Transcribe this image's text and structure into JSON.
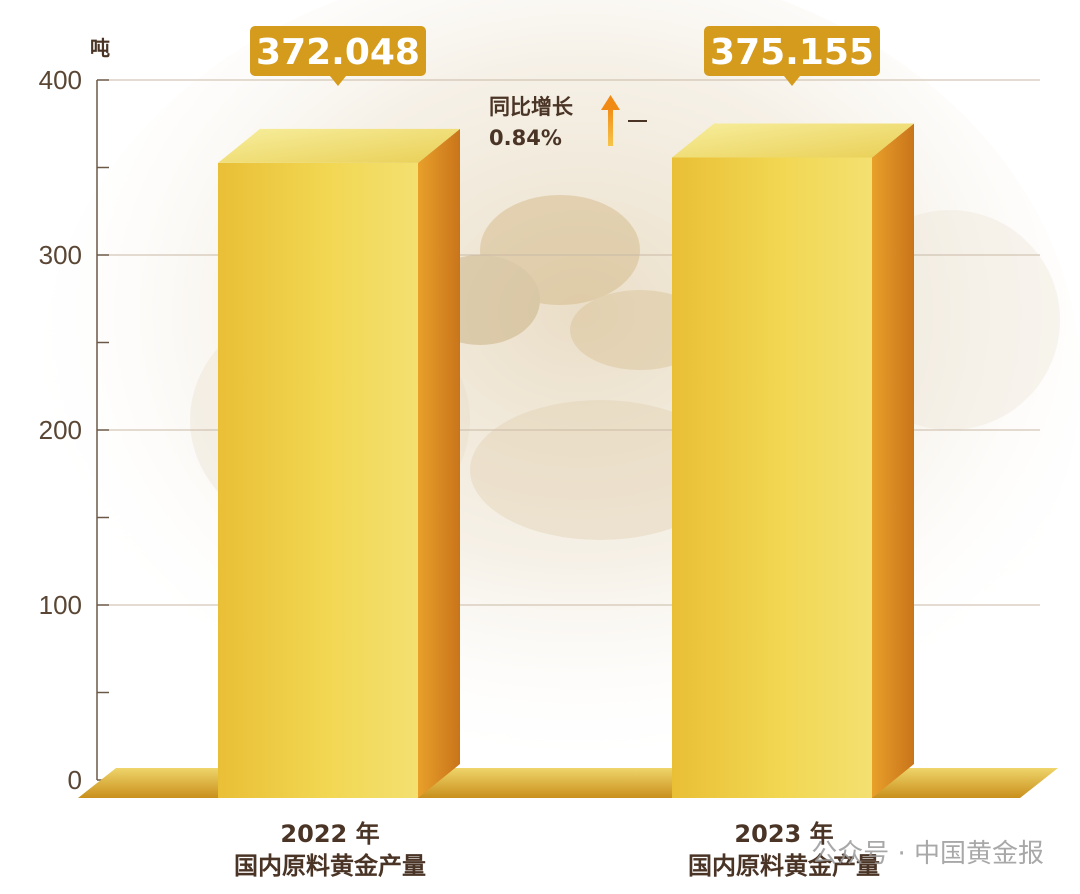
{
  "chart_data": {
    "type": "bar",
    "unit": "吨",
    "categories": [
      "2022 年\n国内原料黄金产量",
      "2023 年\n国内原料黄金产量"
    ],
    "category_lines": [
      [
        "2022 年",
        "国内原料黄金产量"
      ],
      [
        "2023 年",
        "国内原料黄金产量"
      ]
    ],
    "values": [
      372.048,
      375.155
    ],
    "value_labels": [
      "372.048",
      "375.155"
    ],
    "ylim": [
      0,
      400
    ],
    "yticks": [
      "0",
      "100",
      "200",
      "300",
      "400"
    ],
    "grid": true,
    "annotation": {
      "line1": "同比增长",
      "line2": "0.84%"
    }
  },
  "watermark": {
    "text": "公众号 · 中国黄金报"
  },
  "colors": {
    "bar_front": "#f0cf45",
    "bar_side": "#d8891e",
    "bar_top": "#f4e384",
    "label_bg": "#d49b1c",
    "arrow": "#f4a41c",
    "text": "#4a3426",
    "grid": "#c9b9a6"
  }
}
